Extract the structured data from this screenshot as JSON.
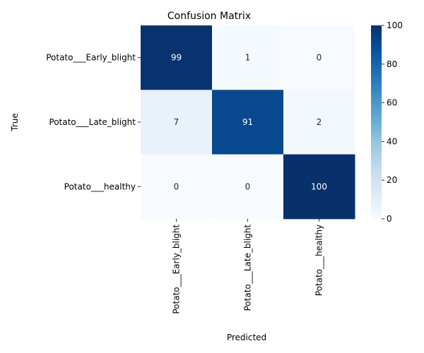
{
  "chart_data": {
    "type": "heatmap",
    "title": "Confusion Matrix",
    "xlabel": "Predicted",
    "ylabel": "True",
    "x_categories": [
      "Potato___Early_blight",
      "Potato___Late_blight",
      "Potato___healthy"
    ],
    "y_categories": [
      "Potato___Early_blight",
      "Potato___Late_blight",
      "Potato___healthy"
    ],
    "values": [
      [
        99,
        1,
        0
      ],
      [
        7,
        91,
        2
      ],
      [
        0,
        0,
        100
      ]
    ],
    "colormap": "Blues",
    "color_range": [
      0,
      100
    ],
    "colorbar_ticks": [
      0,
      20,
      40,
      60,
      80,
      100
    ],
    "grid": false,
    "colorbar_position": "right"
  }
}
